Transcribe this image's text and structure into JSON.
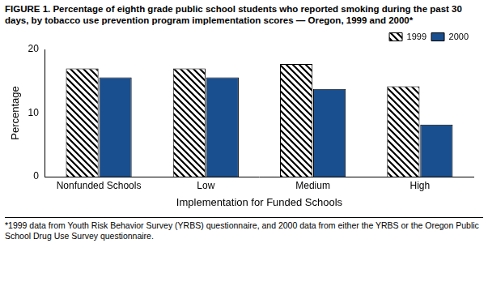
{
  "chart_data": {
    "type": "bar",
    "title": "FIGURE 1. Percentage of eighth grade public school students who reported smoking during the past 30 days, by tobacco use prevention program implementation scores — Oregon, 1999 and 2000*",
    "categories": [
      "Nonfunded Schools",
      "Low",
      "Medium",
      "High"
    ],
    "series": [
      {
        "name": "1999",
        "color": "#000000",
        "values": [
          17.0,
          17.0,
          17.7,
          14.2
        ]
      },
      {
        "name": "2000",
        "color": "#1a4f8f",
        "values": [
          15.6,
          15.6,
          13.8,
          8.2
        ]
      }
    ],
    "y_label": "Percentage",
    "x_label": "Implementation for Funded Schools",
    "ylim": [
      0,
      20
    ],
    "yticks": [
      0,
      10,
      20
    ],
    "grid": false,
    "legend": "upper right",
    "footnote": "*1999 data from Youth Risk Behavior Survey (YRBS) questionnaire, and 2000 data from either the YRBS or the Oregon Public School Drug Use Survey questionnaire."
  }
}
